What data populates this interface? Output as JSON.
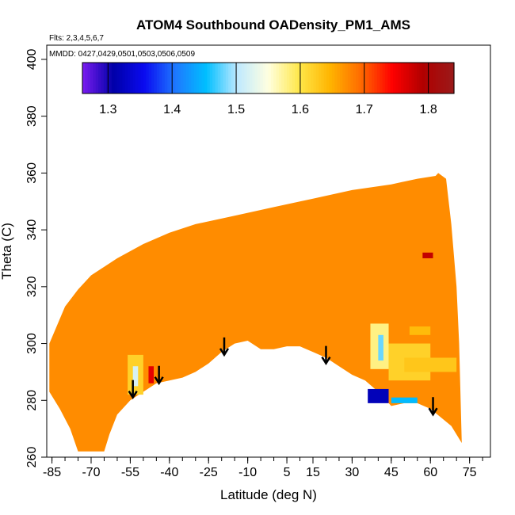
{
  "chart_data": {
    "type": "heatmap",
    "title": "ATOM4 Southbound OADensity_PM1_AMS",
    "flights_label": "Flts: 2,3,4,5,6,7",
    "dates_label": "MMDD: 0427,0429,0501,0503,0506,0509",
    "xlabel": "Latitude (deg N)",
    "ylabel": "Theta (C)",
    "xlim": [
      -87,
      83
    ],
    "ylim": [
      260,
      405
    ],
    "x_ticks": [
      -85,
      -70,
      -55,
      -40,
      -25,
      -10,
      5,
      15,
      30,
      45,
      60,
      75
    ],
    "x_minor_step": 5,
    "y_ticks": [
      260,
      280,
      300,
      320,
      340,
      360,
      380,
      400
    ],
    "colorbar": {
      "range": [
        1.26,
        1.84
      ],
      "ticks": [
        1.3,
        1.4,
        1.5,
        1.6,
        1.7,
        1.8
      ],
      "tick_labels": [
        "1.3",
        "1.4",
        "1.5",
        "1.6",
        "1.7",
        "1.8"
      ],
      "colors": [
        "#7b1cf0",
        "#0000a8",
        "#0a0af0",
        "#1e78ff",
        "#00bfff",
        "#bfe9ff",
        "#ffffe0",
        "#ffe84a",
        "#ffb400",
        "#ff6a00",
        "#ff0000",
        "#b00000",
        "#9a1a1a"
      ]
    },
    "field_color": "#ff8c00",
    "dominant_value": 1.68,
    "upper_boundary": [
      {
        "lat": -86,
        "theta": 300
      },
      {
        "lat": -80,
        "theta": 313
      },
      {
        "lat": -75,
        "theta": 319
      },
      {
        "lat": -70,
        "theta": 324
      },
      {
        "lat": -65,
        "theta": 327
      },
      {
        "lat": -60,
        "theta": 330
      },
      {
        "lat": -50,
        "theta": 335
      },
      {
        "lat": -40,
        "theta": 339
      },
      {
        "lat": -30,
        "theta": 342
      },
      {
        "lat": -15,
        "theta": 345
      },
      {
        "lat": 0,
        "theta": 348
      },
      {
        "lat": 15,
        "theta": 351
      },
      {
        "lat": 30,
        "theta": 354
      },
      {
        "lat": 45,
        "theta": 356
      },
      {
        "lat": 55,
        "theta": 358
      },
      {
        "lat": 62,
        "theta": 359
      },
      {
        "lat": 63,
        "theta": 360
      },
      {
        "lat": 66,
        "theta": 358
      },
      {
        "lat": 68,
        "theta": 342
      },
      {
        "lat": 70,
        "theta": 320
      },
      {
        "lat": 71,
        "theta": 300
      },
      {
        "lat": 72,
        "theta": 265
      }
    ],
    "lower_boundary": [
      {
        "lat": 72,
        "theta": 265
      },
      {
        "lat": 68,
        "theta": 271
      },
      {
        "lat": 64,
        "theta": 274
      },
      {
        "lat": 60,
        "theta": 277
      },
      {
        "lat": 55,
        "theta": 279
      },
      {
        "lat": 50,
        "theta": 279
      },
      {
        "lat": 45,
        "theta": 278
      },
      {
        "lat": 40,
        "theta": 283
      },
      {
        "lat": 35,
        "theta": 287
      },
      {
        "lat": 30,
        "theta": 289
      },
      {
        "lat": 25,
        "theta": 292
      },
      {
        "lat": 20,
        "theta": 295
      },
      {
        "lat": 15,
        "theta": 297
      },
      {
        "lat": 10,
        "theta": 299
      },
      {
        "lat": 5,
        "theta": 299
      },
      {
        "lat": 0,
        "theta": 298
      },
      {
        "lat": -5,
        "theta": 298
      },
      {
        "lat": -10,
        "theta": 301
      },
      {
        "lat": -15,
        "theta": 300
      },
      {
        "lat": -20,
        "theta": 297
      },
      {
        "lat": -25,
        "theta": 293
      },
      {
        "lat": -30,
        "theta": 290
      },
      {
        "lat": -35,
        "theta": 288
      },
      {
        "lat": -40,
        "theta": 287
      },
      {
        "lat": -45,
        "theta": 286
      },
      {
        "lat": -50,
        "theta": 283
      },
      {
        "lat": -55,
        "theta": 280
      },
      {
        "lat": -60,
        "theta": 275
      },
      {
        "lat": -63,
        "theta": 268
      },
      {
        "lat": -65,
        "theta": 262
      },
      {
        "lat": -75,
        "theta": 262
      },
      {
        "lat": -78,
        "theta": 270
      },
      {
        "lat": -82,
        "theta": 277
      },
      {
        "lat": -86,
        "theta": 283
      }
    ],
    "anomalies": [
      {
        "lat_min": -56,
        "lat_max": -50,
        "theta_min": 282,
        "theta_max": 296,
        "value": 1.62
      },
      {
        "lat_min": -54,
        "lat_max": -52,
        "theta_min": 285,
        "theta_max": 292,
        "value": 1.52
      },
      {
        "lat_min": -48,
        "lat_max": -46,
        "theta_min": 286,
        "theta_max": 292,
        "value": 1.76
      },
      {
        "lat_min": 37,
        "lat_max": 44,
        "theta_min": 291,
        "theta_max": 307,
        "value": 1.58
      },
      {
        "lat_min": 40,
        "lat_max": 42,
        "theta_min": 294,
        "theta_max": 303,
        "value": 1.48
      },
      {
        "lat_min": 44,
        "lat_max": 60,
        "theta_min": 287,
        "theta_max": 300,
        "value": 1.62
      },
      {
        "lat_min": 50,
        "lat_max": 70,
        "theta_min": 290,
        "theta_max": 295,
        "value": 1.63
      },
      {
        "lat_min": 52,
        "lat_max": 60,
        "theta_min": 303,
        "theta_max": 306,
        "value": 1.64
      },
      {
        "lat_min": 45,
        "lat_max": 55,
        "theta_min": 279,
        "theta_max": 281,
        "value": 1.45
      },
      {
        "lat_min": 36,
        "lat_max": 44,
        "theta_min": 279,
        "theta_max": 284,
        "value": 1.32
      },
      {
        "lat_min": 57,
        "lat_max": 61,
        "theta_min": 330,
        "theta_max": 332,
        "value": 1.78
      }
    ],
    "arrows": [
      {
        "lat": -54,
        "theta": 281
      },
      {
        "lat": -44,
        "theta": 286
      },
      {
        "lat": -19,
        "theta": 296
      },
      {
        "lat": 20,
        "theta": 293
      },
      {
        "lat": 61,
        "theta": 275
      }
    ]
  }
}
